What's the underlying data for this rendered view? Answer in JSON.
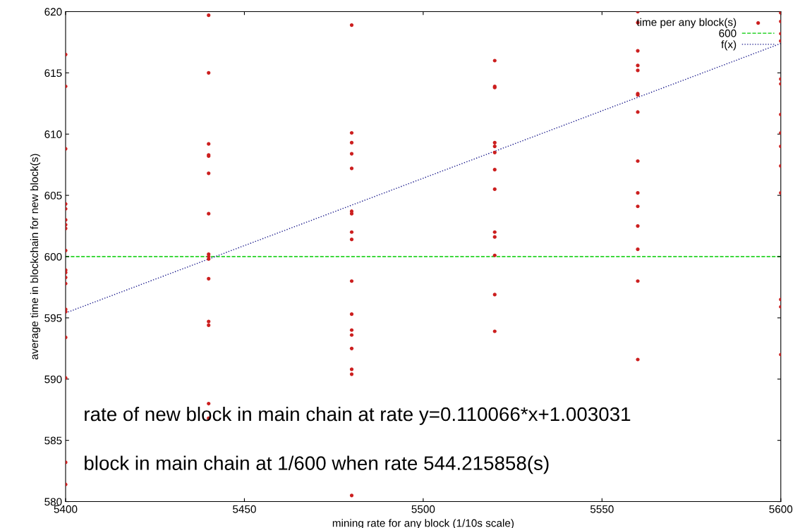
{
  "chart_data": {
    "type": "scatter",
    "xlabel": "mining rate for any block (1/10s scale)",
    "ylabel": "average time in blockchain for new block(s)",
    "xlim": [
      5400,
      5600
    ],
    "xticks": [
      5400,
      5450,
      5500,
      5550,
      5600
    ],
    "ylim": [
      580,
      620
    ],
    "yticks": [
      580,
      585,
      590,
      595,
      600,
      605,
      610,
      615,
      620
    ],
    "grid": false,
    "legend": "top right",
    "series": [
      {
        "name": "time per any block(s)",
        "color": "#cc1f1f",
        "marker": "circle",
        "x": [
          5400,
          5400,
          5400,
          5400,
          5400,
          5400,
          5400,
          5400,
          5400,
          5400,
          5400,
          5400,
          5400,
          5400,
          5400,
          5400,
          5400,
          5400,
          5400,
          5440,
          5440,
          5440,
          5440,
          5440,
          5440,
          5440,
          5440,
          5440,
          5440,
          5440,
          5440,
          5440,
          5440,
          5440,
          5480,
          5480,
          5480,
          5480,
          5480,
          5480,
          5480,
          5480,
          5480,
          5480,
          5480,
          5480,
          5480,
          5480,
          5480,
          5480,
          5480,
          5520,
          5520,
          5520,
          5520,
          5520,
          5520,
          5520,
          5520,
          5520,
          5520,
          5520,
          5520,
          5520,
          5560,
          5560,
          5560,
          5560,
          5560,
          5560,
          5560,
          5560,
          5560,
          5560,
          5560,
          5560,
          5560,
          5560,
          5560,
          5600,
          5600,
          5600,
          5600,
          5600,
          5600,
          5600,
          5600,
          5600,
          5600,
          5600,
          5600,
          5600,
          5600
        ],
        "values": [
          616.5,
          613.9,
          608.8,
          604.3,
          603.9,
          603.0,
          602.6,
          602.3,
          600.5,
          598.9,
          598.7,
          598.3,
          597.8,
          595.7,
          595.5,
          593.4,
          590.1,
          583.2,
          581.4,
          619.7,
          615.0,
          609.2,
          608.3,
          608.2,
          606.8,
          603.5,
          600.2,
          600.0,
          599.8,
          598.2,
          594.7,
          594.4,
          588.0,
          586.8,
          618.9,
          610.1,
          609.3,
          608.4,
          607.2,
          603.7,
          603.5,
          602.0,
          601.4,
          598.0,
          595.3,
          594.0,
          593.6,
          592.5,
          590.8,
          590.4,
          580.5,
          616.0,
          613.9,
          613.8,
          609.3,
          609.0,
          608.5,
          607.1,
          605.5,
          602.0,
          601.6,
          600.1,
          596.9,
          593.9,
          620.0,
          619.1,
          616.8,
          615.6,
          615.2,
          613.3,
          613.2,
          611.8,
          607.8,
          605.2,
          604.1,
          602.5,
          600.6,
          598.0,
          591.6,
          619.9,
          619.2,
          618.2,
          617.6,
          614.5,
          614.1,
          611.6,
          610.1,
          609.0,
          607.4,
          605.2,
          596.5,
          595.9,
          592.0
        ]
      },
      {
        "name": "f(x)",
        "type": "line",
        "color": "#1a1a8c",
        "line_style": "dotted",
        "x": [
          5400,
          5600
        ],
        "values": [
          595.4,
          617.4
        ]
      }
    ],
    "ref_lines": [
      {
        "axis": "y",
        "value": 600,
        "label": "600",
        "color": "#00cc00",
        "line_style": "dashed"
      }
    ],
    "annotations": [
      "rate of new block in main chain at rate y=0.110066*x+1.003031",
      "block in main chain at 1/600 when rate 544.215858(s)"
    ]
  }
}
